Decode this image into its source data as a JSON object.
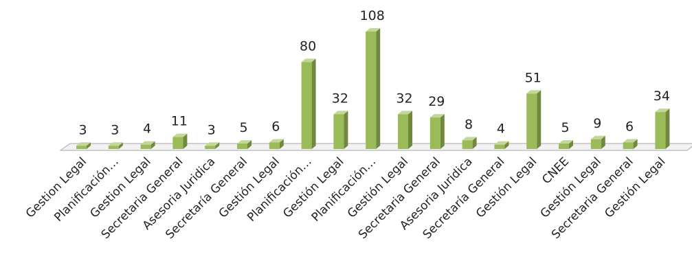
{
  "chart_data": {
    "type": "bar",
    "title": "",
    "xlabel": "",
    "ylabel": "",
    "ylim": [
      0,
      115
    ],
    "grid": false,
    "legend": "none",
    "categories": [
      "Gestion Legal",
      "Planificación…",
      "Gestion Legal",
      "Secretaria General",
      "Asesoria Juridica",
      "Secretaría General",
      "Gestión Legal",
      "Planificación…",
      "Gestión Legal",
      "Planificación…",
      "Gestión Legal",
      "Secretaria General",
      "Asesoria Juridica",
      "Secretaría General",
      "Gestión Legal",
      "CNEE",
      "Gestión Legal",
      "Secretaria General",
      "Gestión Legal"
    ],
    "values": [
      3,
      3,
      4,
      11,
      3,
      5,
      6,
      80,
      32,
      108,
      32,
      29,
      8,
      4,
      51,
      5,
      9,
      6,
      34
    ],
    "colors": {
      "bar_front": "#9bbb59",
      "bar_side": "#71893f",
      "bar_top": "#c3d69b",
      "floor": "#f2f2f2",
      "floor_edge": "#a6a6a6"
    }
  }
}
